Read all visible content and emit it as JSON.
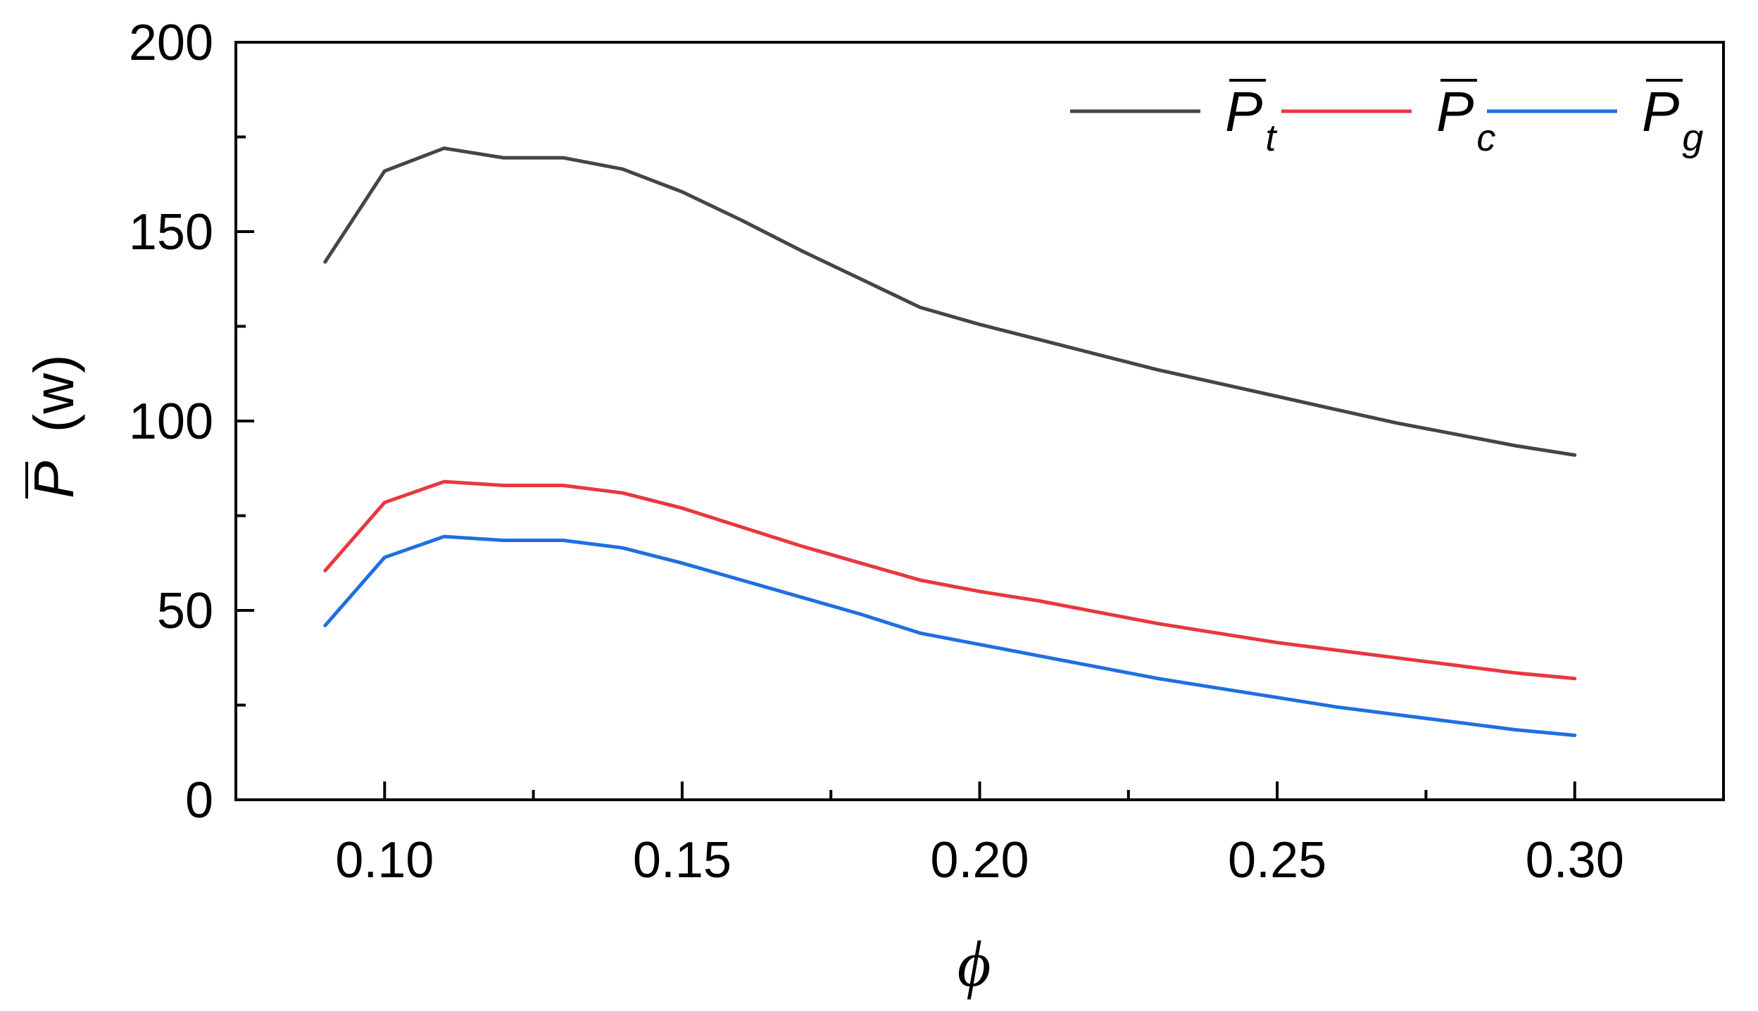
{
  "chart_data": {
    "type": "line",
    "xlabel": "ϕ",
    "ylabel_main": "P",
    "ylabel_unit": "(w)",
    "xlim": [
      0.075,
      0.325
    ],
    "ylim": [
      0,
      200
    ],
    "x_major_ticks": [
      0.1,
      0.15,
      0.2,
      0.25,
      0.3
    ],
    "x_tick_labels": [
      "0.10",
      "0.15",
      "0.20",
      "0.25",
      "0.30"
    ],
    "x_minor_ticks": [
      0.125,
      0.175,
      0.225,
      0.275
    ],
    "y_major_ticks": [
      0,
      50,
      100,
      150,
      200
    ],
    "y_tick_labels": [
      "0",
      "50",
      "100",
      "150",
      "200"
    ],
    "y_minor_ticks": [
      25,
      75,
      125,
      175
    ],
    "grid": false,
    "legend_position": "top-right",
    "x": [
      0.09,
      0.1,
      0.11,
      0.12,
      0.13,
      0.14,
      0.15,
      0.16,
      0.17,
      0.18,
      0.19,
      0.2,
      0.21,
      0.22,
      0.23,
      0.24,
      0.25,
      0.26,
      0.27,
      0.28,
      0.29,
      0.3
    ],
    "series": [
      {
        "name": "P",
        "subscript": "t",
        "color": "#454545",
        "values": [
          142,
          166,
          172,
          169.5,
          169.5,
          166.5,
          160.5,
          153,
          145,
          137.5,
          130,
          125.5,
          121.5,
          117.5,
          113.5,
          110,
          106.5,
          103,
          99.5,
          96.5,
          93.5,
          91
        ]
      },
      {
        "name": "P",
        "subscript": "c",
        "color": "#e8383d",
        "values": [
          60.5,
          78.5,
          84,
          83,
          83,
          81,
          77,
          72,
          67,
          62.5,
          58,
          55,
          52.5,
          49.5,
          46.5,
          44,
          41.5,
          39.5,
          37.5,
          35.5,
          33.5,
          32
        ]
      },
      {
        "name": "P",
        "subscript": "g",
        "color": "#1f6fe0",
        "values": [
          46,
          64,
          69.5,
          68.5,
          68.5,
          66.5,
          62.5,
          58,
          53.5,
          49,
          44,
          41,
          38,
          35,
          32,
          29.5,
          27,
          24.5,
          22.5,
          20.5,
          18.5,
          17
        ]
      }
    ]
  }
}
